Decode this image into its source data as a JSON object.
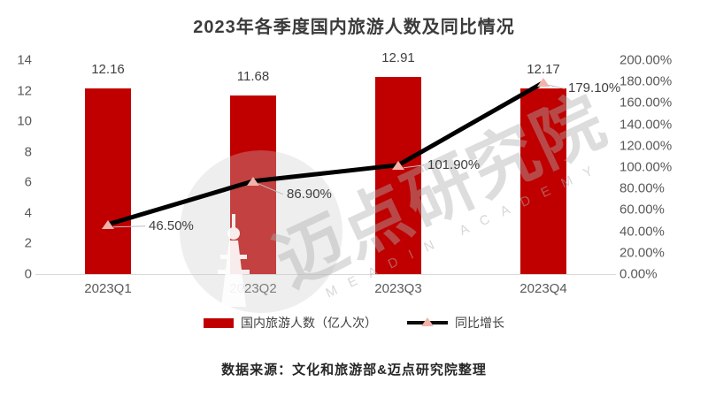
{
  "title": "2023年各季度国内旅游人数及同比情况",
  "source_note": "数据来源：文化和旅游部&迈点研究院整理",
  "watermark": {
    "cn": "迈点研究院",
    "en": "MEADIN ACADEMY"
  },
  "legend": {
    "bar_label": "国内旅游人数（亿人次）",
    "line_label": "同比增长"
  },
  "colors": {
    "bar": "#c00000",
    "line": "#000000",
    "marker": "#f2b3ab",
    "axis_line": "#d9d9d9",
    "tick_text": "#595959",
    "label_text": "#404040"
  },
  "chart_data": {
    "type": "bar",
    "subtype": "combo-bar-line",
    "title": "2023年各季度国内旅游人数及同比情况",
    "categories": [
      "2023Q1",
      "2023Q2",
      "2023Q3",
      "2023Q4"
    ],
    "series": [
      {
        "name": "国内旅游人数（亿人次）",
        "type": "bar",
        "axis": "left",
        "values": [
          12.16,
          11.68,
          12.91,
          12.17
        ],
        "labels": [
          "12.16",
          "11.68",
          "12.91",
          "12.17"
        ]
      },
      {
        "name": "同比增长",
        "type": "line",
        "axis": "right",
        "values": [
          46.5,
          86.9,
          101.9,
          179.1
        ],
        "labels": [
          "46.50%",
          "86.90%",
          "101.90%",
          "179.10%"
        ]
      }
    ],
    "left_axis": {
      "min": 0,
      "max": 14,
      "step": 2,
      "ticks": [
        "0",
        "2",
        "4",
        "6",
        "8",
        "10",
        "12",
        "14"
      ]
    },
    "right_axis": {
      "min": 0,
      "max": 200,
      "step": 20,
      "ticks": [
        "0.00%",
        "20.00%",
        "40.00%",
        "60.00%",
        "80.00%",
        "100.00%",
        "120.00%",
        "140.00%",
        "160.00%",
        "180.00%",
        "200.00%"
      ]
    },
    "grid": false,
    "legend_position": "bottom"
  }
}
